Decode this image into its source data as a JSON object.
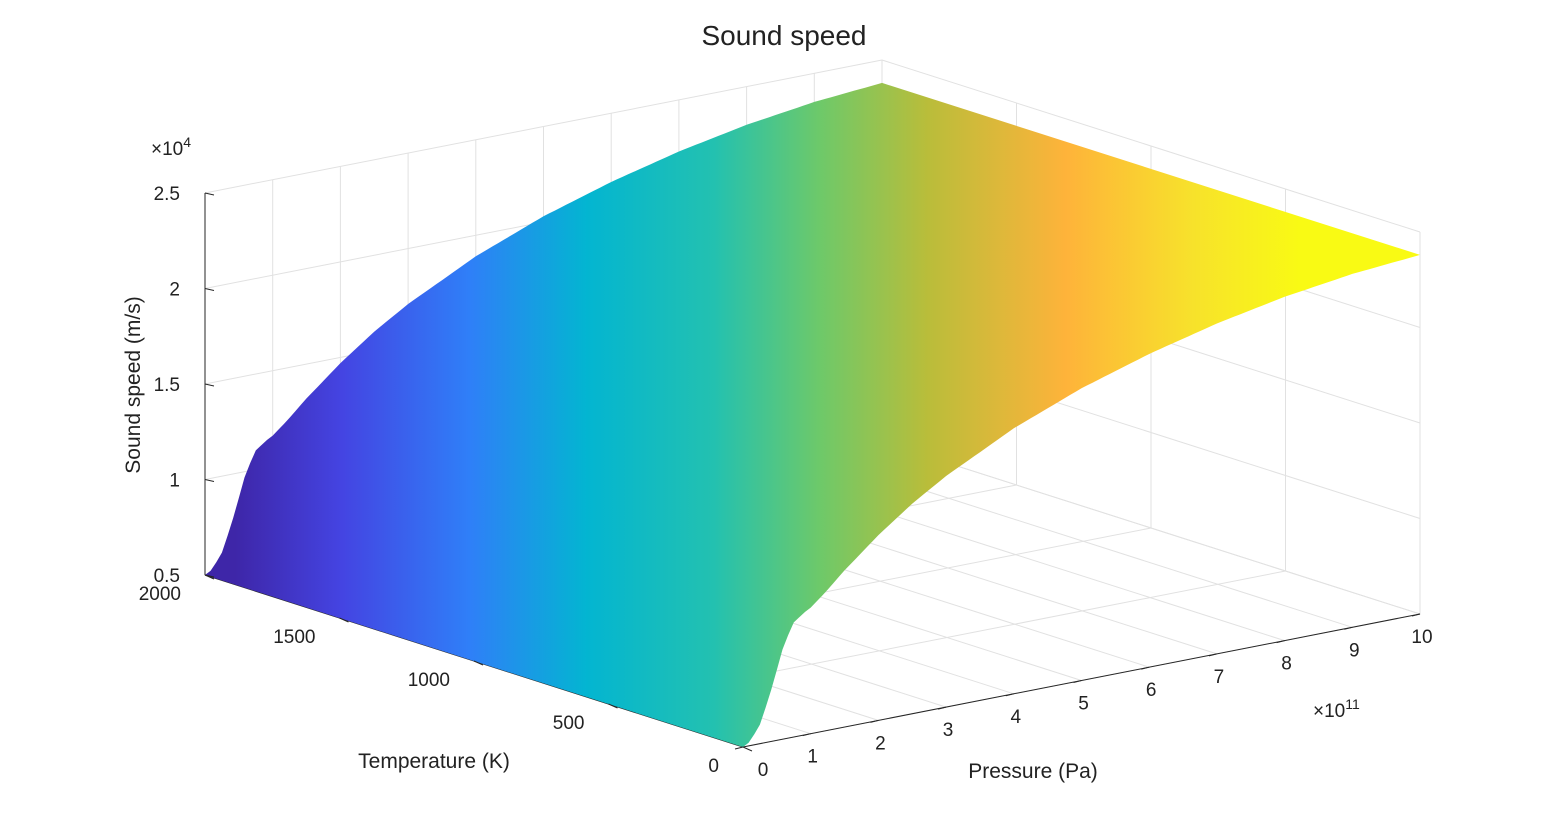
{
  "chart_data": {
    "type": "surface",
    "title": "Sound speed",
    "xlabel": "Pressure (Pa)",
    "ylabel": "Temperature (K)",
    "zlabel": "Sound speed (m/s)",
    "x_exponent_label": "×10",
    "x_exponent_power": "11",
    "z_exponent_label": "×10",
    "z_exponent_power": "4",
    "xlim": [
      0,
      10
    ],
    "ylim": [
      0,
      2000
    ],
    "zlim": [
      0.5,
      2.5
    ],
    "x_ticks": [
      "0",
      "1",
      "2",
      "3",
      "4",
      "5",
      "6",
      "7",
      "8",
      "9",
      "10"
    ],
    "y_ticks": [
      "0",
      "500",
      "1000",
      "1500",
      "2000"
    ],
    "z_ticks": [
      "0.5",
      "1",
      "1.5",
      "2",
      "2.5"
    ],
    "x_scale_factor": "1e11",
    "z_scale_factor": "1e4",
    "grid": true,
    "colormap": "parula",
    "surface_profile": {
      "pressure_x1e11": [
        0,
        0.1,
        0.25,
        0.4,
        0.5,
        0.6,
        0.75,
        0.9,
        1.0,
        1.2,
        1.5,
        2.0,
        2.5,
        3.0,
        4.0,
        5.0,
        6.0,
        7.0,
        8.0,
        9.0,
        10.0
      ],
      "sound_speed_x1e4": [
        0.5,
        0.52,
        0.6,
        0.75,
        0.87,
        0.99,
        1.1,
        1.14,
        1.16,
        1.22,
        1.32,
        1.47,
        1.6,
        1.71,
        1.89,
        2.03,
        2.14,
        2.23,
        2.3,
        2.35,
        2.38
      ]
    },
    "temperature_dependence": "none (constant along temperature)"
  }
}
